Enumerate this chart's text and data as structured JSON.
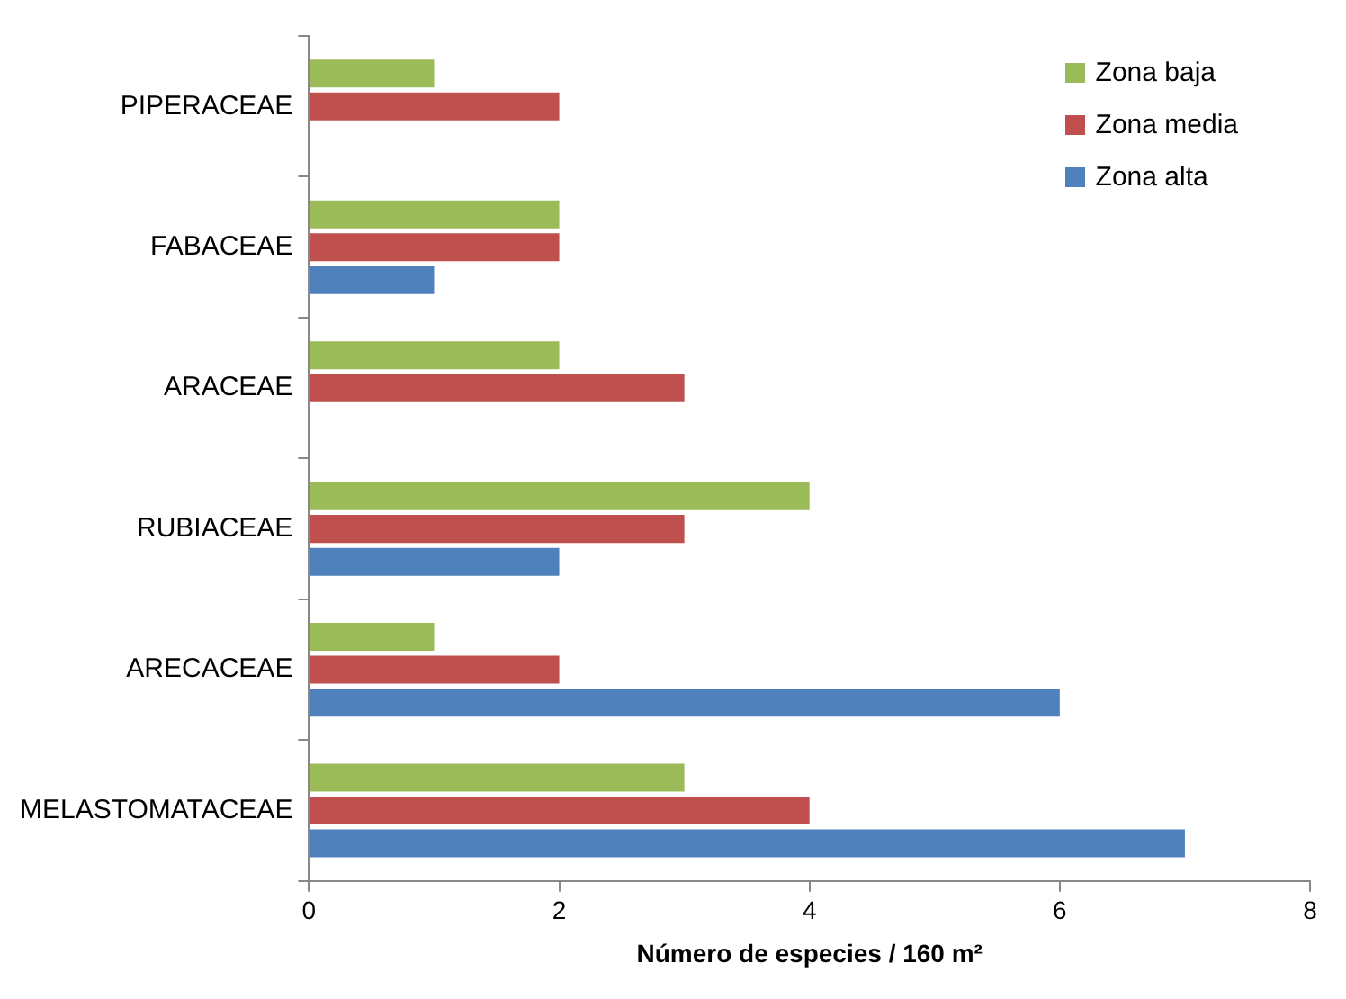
{
  "chart_data": {
    "type": "bar",
    "orientation": "horizontal",
    "xlabel": "Número de especies / 160 m²",
    "categories": [
      "PIPERACEAE",
      "FABACEAE",
      "ARACEAE",
      "RUBIACEAE",
      "ARECACEAE",
      "MELASTOMATACEAE"
    ],
    "series": [
      {
        "name": "Zona baja",
        "color": "#9bbb59",
        "values": [
          1,
          2,
          2,
          4,
          1,
          3
        ]
      },
      {
        "name": "Zona media",
        "color": "#c0504d",
        "values": [
          2,
          2,
          3,
          3,
          2,
          4
        ]
      },
      {
        "name": "Zona alta",
        "color": "#4f81bd",
        "values": [
          0,
          1,
          0,
          2,
          6,
          7
        ]
      }
    ],
    "xlim": [
      0,
      8
    ],
    "xticks": [
      0,
      2,
      4,
      6,
      8
    ],
    "grid": false,
    "legend": "top right"
  }
}
